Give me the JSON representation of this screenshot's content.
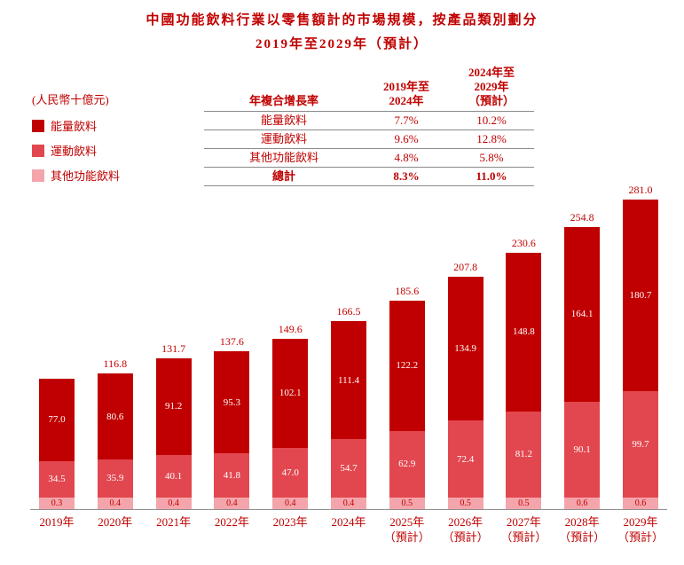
{
  "title": {
    "line1": "中國功能飲料行業以零售額計的市場規模，按產品類別劃分",
    "line2": "2019年至2029年（預計）"
  },
  "legend": {
    "unit": "(人民幣十億元)",
    "items": [
      {
        "label": "能量飲料",
        "color": "#c00000"
      },
      {
        "label": "運動飲料",
        "color": "#e2474f"
      },
      {
        "label": "其他功能飲料",
        "color": "#f4a5ab"
      }
    ]
  },
  "table": {
    "cagr_header": "年複合增長率",
    "period1_header": "2019年至\n2024年",
    "period2_header": "2024年至\n2029年\n（預計）",
    "rows": [
      {
        "label": "能量飲料",
        "p1": "7.7%",
        "p2": "10.2%"
      },
      {
        "label": "運動飲料",
        "p1": "9.6%",
        "p2": "12.8%"
      },
      {
        "label": "其他功能飲料",
        "p1": "4.8%",
        "p2": "5.8%"
      },
      {
        "label": "總計",
        "p1": "8.3%",
        "p2": "11.0%"
      }
    ]
  },
  "chart_data": {
    "type": "bar",
    "stacked": true,
    "unit": "人民幣十億元",
    "ylim": [
      0,
      300
    ],
    "legend_position": "left",
    "categories": [
      {
        "label": "2019年"
      },
      {
        "label": "2020年"
      },
      {
        "label": "2021年"
      },
      {
        "label": "2022年"
      },
      {
        "label": "2023年"
      },
      {
        "label": "2024年"
      },
      {
        "label": "2025年",
        "sublabel": "（預計）"
      },
      {
        "label": "2026年",
        "sublabel": "（預計）"
      },
      {
        "label": "2027年",
        "sublabel": "（預計）"
      },
      {
        "label": "2028年",
        "sublabel": "（預計）"
      },
      {
        "label": "2029年",
        "sublabel": "（預計）"
      }
    ],
    "series": [
      {
        "name": "能量飲料",
        "color": "#c00000",
        "values": [
          77.0,
          80.6,
          91.2,
          95.3,
          102.1,
          111.4,
          122.2,
          134.9,
          148.8,
          164.1,
          180.7
        ]
      },
      {
        "name": "運動飲料",
        "color": "#e2474f",
        "values": [
          34.5,
          35.9,
          40.1,
          41.8,
          47.0,
          54.7,
          62.9,
          72.4,
          81.2,
          90.1,
          99.7
        ]
      },
      {
        "name": "其他功能飲料",
        "color": "#f4a5ab",
        "values": [
          0.3,
          0.4,
          0.4,
          0.4,
          0.4,
          0.4,
          0.5,
          0.5,
          0.5,
          0.6,
          0.6
        ]
      }
    ],
    "totals": [
      null,
      116.8,
      131.7,
      137.6,
      149.6,
      166.5,
      185.6,
      207.8,
      230.6,
      254.8,
      281.0
    ]
  }
}
